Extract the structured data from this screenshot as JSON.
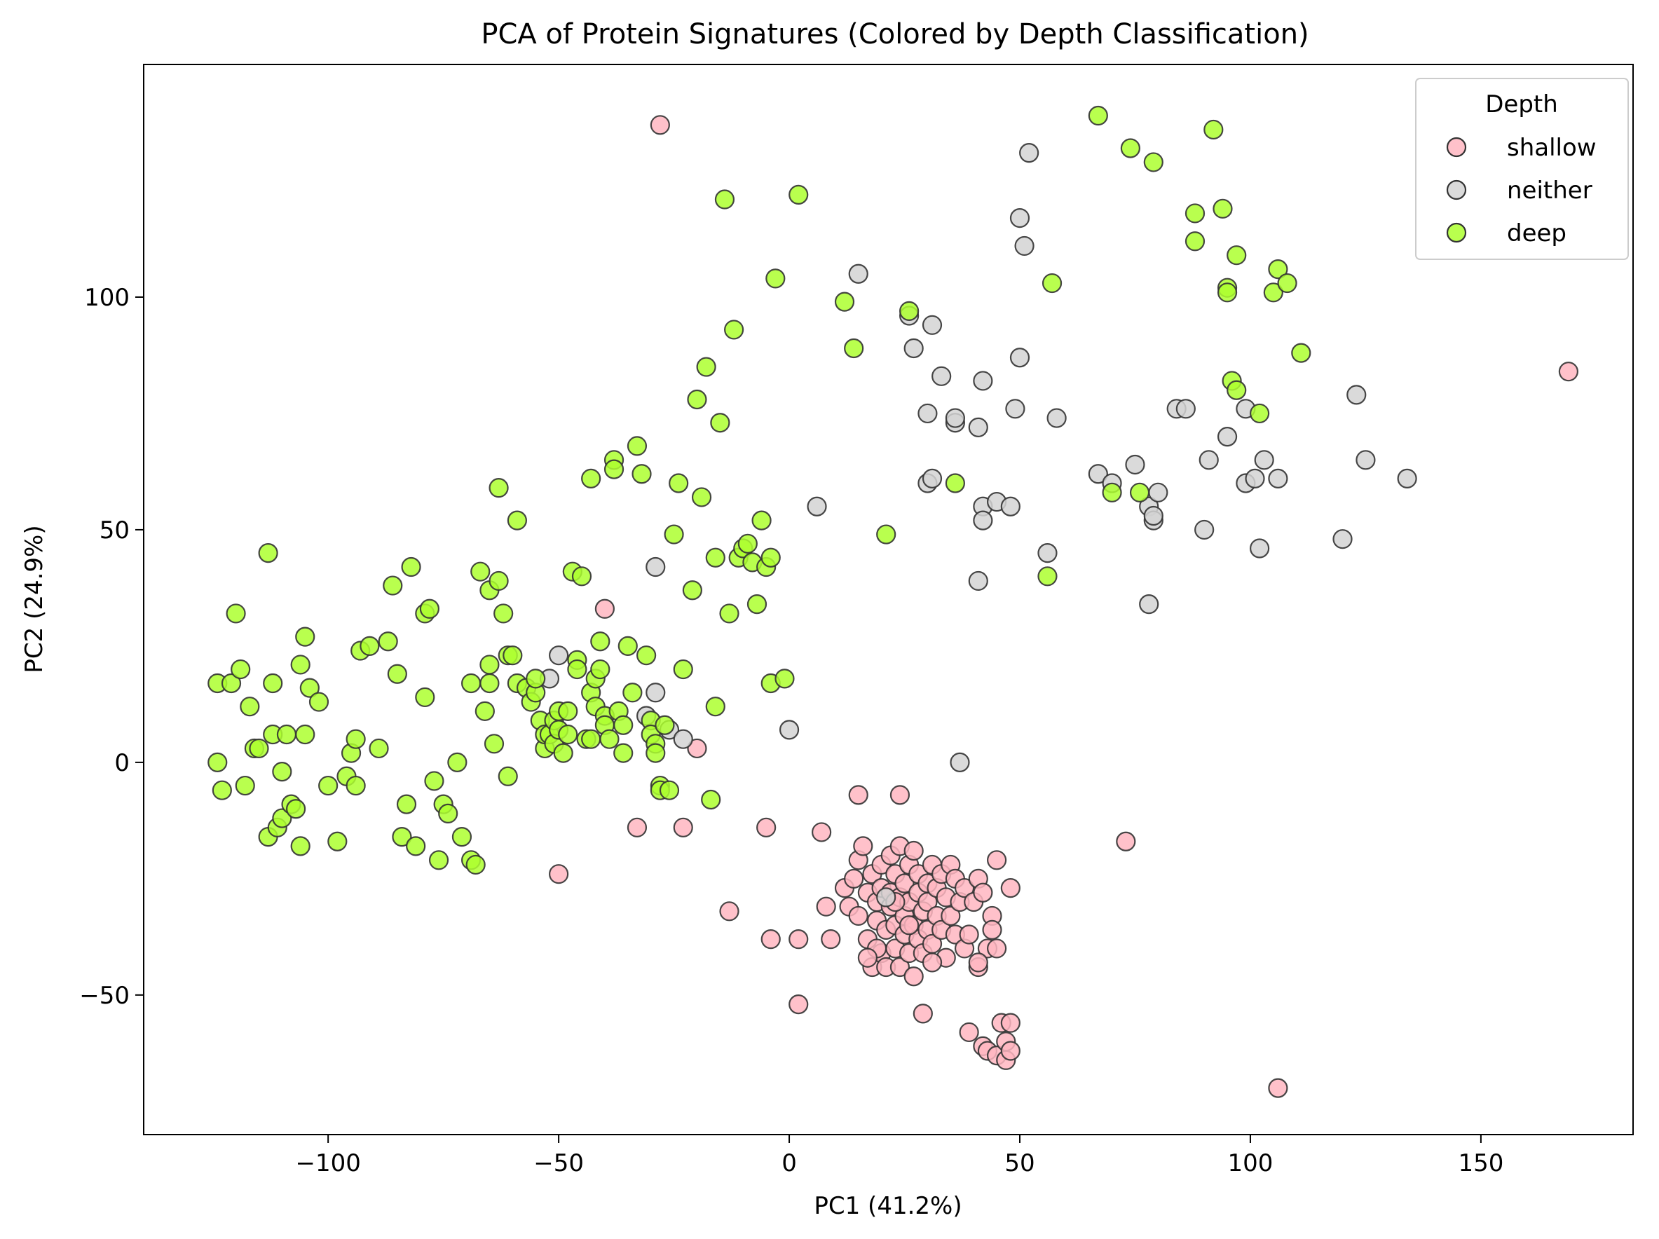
{
  "chart_data": {
    "type": "scatter",
    "title": "PCA of Protein Signatures (Colored by Depth Classification)",
    "xlabel": "PC1 (41.2%)",
    "ylabel": "PC2 (24.9%)",
    "xlim": [
      -140,
      183
    ],
    "ylim": [
      -80,
      150
    ],
    "xticks": [
      -100,
      -50,
      0,
      50,
      100,
      150
    ],
    "yticks": [
      -50,
      0,
      50,
      100
    ],
    "xtick_labels": [
      "−100",
      "−50",
      "0",
      "50",
      "100",
      "150"
    ],
    "ytick_labels": [
      "−50",
      "0",
      "50",
      "100"
    ],
    "grid": false,
    "legend": {
      "title": "Depth",
      "placement": "top-right"
    },
    "series": [
      {
        "name": "shallow",
        "color": "#ffb6c1",
        "points": [
          [
            -28,
            137
          ],
          [
            169,
            84
          ],
          [
            -40,
            33
          ],
          [
            -20,
            3
          ],
          [
            -50,
            -24
          ],
          [
            -33,
            -14
          ],
          [
            -23,
            -14
          ],
          [
            -13,
            -32
          ],
          [
            -5,
            -14
          ],
          [
            -4,
            -38
          ],
          [
            2,
            -38
          ],
          [
            2,
            -52
          ],
          [
            7,
            -15
          ],
          [
            8,
            -31
          ],
          [
            9,
            -38
          ],
          [
            15,
            -7
          ],
          [
            24,
            -7
          ],
          [
            73,
            -17
          ],
          [
            106,
            -70
          ],
          [
            12,
            -27
          ],
          [
            13,
            -31
          ],
          [
            14,
            -25
          ],
          [
            15,
            -33
          ],
          [
            15,
            -21
          ],
          [
            16,
            -18
          ],
          [
            17,
            -28
          ],
          [
            17,
            -38
          ],
          [
            18,
            -24
          ],
          [
            18,
            -44
          ],
          [
            19,
            -34
          ],
          [
            19,
            -30
          ],
          [
            20,
            -22
          ],
          [
            20,
            -41
          ],
          [
            20,
            -27
          ],
          [
            21,
            -36
          ],
          [
            21,
            -44
          ],
          [
            22,
            -20
          ],
          [
            22,
            -31
          ],
          [
            22,
            -28
          ],
          [
            23,
            -40
          ],
          [
            23,
            -24
          ],
          [
            23,
            -35
          ],
          [
            24,
            -18
          ],
          [
            24,
            -29
          ],
          [
            24,
            -44
          ],
          [
            25,
            -33
          ],
          [
            25,
            -26
          ],
          [
            25,
            -37
          ],
          [
            26,
            -22
          ],
          [
            26,
            -41
          ],
          [
            26,
            -30
          ],
          [
            27,
            -35
          ],
          [
            27,
            -19
          ],
          [
            27,
            -46
          ],
          [
            28,
            -28
          ],
          [
            28,
            -38
          ],
          [
            28,
            -24
          ],
          [
            29,
            -32
          ],
          [
            29,
            -41
          ],
          [
            29,
            -54
          ],
          [
            30,
            -26
          ],
          [
            30,
            -36
          ],
          [
            30,
            -30
          ],
          [
            31,
            -22
          ],
          [
            31,
            -39
          ],
          [
            32,
            -33
          ],
          [
            32,
            -27
          ],
          [
            33,
            -24
          ],
          [
            33,
            -36
          ],
          [
            34,
            -42
          ],
          [
            34,
            -29
          ],
          [
            35,
            -22
          ],
          [
            35,
            -33
          ],
          [
            36,
            -25
          ],
          [
            36,
            -37
          ],
          [
            37,
            -30
          ],
          [
            38,
            -27
          ],
          [
            38,
            -40
          ],
          [
            39,
            -37
          ],
          [
            39,
            -58
          ],
          [
            40,
            -30
          ],
          [
            41,
            -25
          ],
          [
            41,
            -44
          ],
          [
            42,
            -28
          ],
          [
            42,
            -61
          ],
          [
            43,
            -40
          ],
          [
            43,
            -62
          ],
          [
            44,
            -33
          ],
          [
            44,
            -36
          ],
          [
            45,
            -21
          ],
          [
            45,
            -63
          ],
          [
            46,
            -56
          ],
          [
            47,
            -64
          ],
          [
            47,
            -60
          ],
          [
            48,
            -27
          ],
          [
            48,
            -62
          ],
          [
            48,
            -56
          ],
          [
            45,
            -40
          ],
          [
            41,
            -43
          ],
          [
            19,
            -40
          ],
          [
            17,
            -42
          ],
          [
            23,
            -30
          ],
          [
            26,
            -35
          ],
          [
            31,
            -43
          ]
        ]
      },
      {
        "name": "neither",
        "color": "#d3d3d3",
        "points": [
          [
            -50,
            23
          ],
          [
            -52,
            18
          ],
          [
            -31,
            10
          ],
          [
            -29,
            15
          ],
          [
            -26,
            7
          ],
          [
            -23,
            5
          ],
          [
            -29,
            42
          ],
          [
            0,
            7
          ],
          [
            6,
            55
          ],
          [
            15,
            105
          ],
          [
            21,
            -29
          ],
          [
            26,
            96
          ],
          [
            27,
            89
          ],
          [
            30,
            60
          ],
          [
            30,
            75
          ],
          [
            31,
            61
          ],
          [
            31,
            94
          ],
          [
            33,
            83
          ],
          [
            36,
            73
          ],
          [
            36,
            74
          ],
          [
            37,
            0
          ],
          [
            41,
            39
          ],
          [
            41,
            72
          ],
          [
            42,
            55
          ],
          [
            42,
            52
          ],
          [
            42,
            82
          ],
          [
            45,
            56
          ],
          [
            48,
            55
          ],
          [
            49,
            76
          ],
          [
            50,
            87
          ],
          [
            50,
            117
          ],
          [
            51,
            111
          ],
          [
            52,
            131
          ],
          [
            56,
            45
          ],
          [
            58,
            74
          ],
          [
            67,
            62
          ],
          [
            70,
            60
          ],
          [
            75,
            64
          ],
          [
            78,
            34
          ],
          [
            78,
            55
          ],
          [
            79,
            52
          ],
          [
            79,
            53
          ],
          [
            80,
            58
          ],
          [
            84,
            76
          ],
          [
            86,
            76
          ],
          [
            90,
            50
          ],
          [
            91,
            65
          ],
          [
            95,
            70
          ],
          [
            99,
            60
          ],
          [
            99,
            76
          ],
          [
            101,
            61
          ],
          [
            102,
            46
          ],
          [
            103,
            65
          ],
          [
            106,
            61
          ],
          [
            120,
            48
          ],
          [
            123,
            79
          ],
          [
            125,
            65
          ],
          [
            134,
            61
          ]
        ]
      },
      {
        "name": "deep",
        "color": "#adff2f",
        "points": [
          [
            -124,
            17
          ],
          [
            -124,
            0
          ],
          [
            -123,
            -6
          ],
          [
            -121,
            17
          ],
          [
            -120,
            32
          ],
          [
            -119,
            20
          ],
          [
            -118,
            -5
          ],
          [
            -117,
            12
          ],
          [
            -116,
            3
          ],
          [
            -115,
            3
          ],
          [
            -113,
            -16
          ],
          [
            -113,
            45
          ],
          [
            -112,
            17
          ],
          [
            -112,
            6
          ],
          [
            -111,
            -14
          ],
          [
            -110,
            -12
          ],
          [
            -110,
            -2
          ],
          [
            -109,
            6
          ],
          [
            -108,
            -9
          ],
          [
            -107,
            -10
          ],
          [
            -106,
            21
          ],
          [
            -106,
            -18
          ],
          [
            -105,
            27
          ],
          [
            -105,
            6
          ],
          [
            -104,
            16
          ],
          [
            -102,
            13
          ],
          [
            -100,
            -5
          ],
          [
            -98,
            -17
          ],
          [
            -96,
            -3
          ],
          [
            -95,
            2
          ],
          [
            -94,
            5
          ],
          [
            -94,
            -5
          ],
          [
            -93,
            24
          ],
          [
            -91,
            25
          ],
          [
            -89,
            3
          ],
          [
            -87,
            26
          ],
          [
            -86,
            38
          ],
          [
            -85,
            19
          ],
          [
            -84,
            -16
          ],
          [
            -83,
            -9
          ],
          [
            -82,
            42
          ],
          [
            -81,
            -18
          ],
          [
            -79,
            14
          ],
          [
            -79,
            32
          ],
          [
            -78,
            33
          ],
          [
            -77,
            -4
          ],
          [
            -76,
            -21
          ],
          [
            -75,
            -9
          ],
          [
            -74,
            -11
          ],
          [
            -72,
            0
          ],
          [
            -71,
            -16
          ],
          [
            -69,
            17
          ],
          [
            -69,
            -21
          ],
          [
            -68,
            -22
          ],
          [
            -67,
            41
          ],
          [
            -66,
            11
          ],
          [
            -65,
            21
          ],
          [
            -65,
            17
          ],
          [
            -65,
            37
          ],
          [
            -64,
            4
          ],
          [
            -63,
            59
          ],
          [
            -63,
            39
          ],
          [
            -62,
            32
          ],
          [
            -61,
            -3
          ],
          [
            -61,
            23
          ],
          [
            -60,
            23
          ],
          [
            -59,
            52
          ],
          [
            -59,
            17
          ],
          [
            -57,
            16
          ],
          [
            -56,
            13
          ],
          [
            -55,
            15
          ],
          [
            -55,
            18
          ],
          [
            -54,
            9
          ],
          [
            -53,
            3
          ],
          [
            -53,
            6
          ],
          [
            -52,
            6
          ],
          [
            -51,
            9
          ],
          [
            -51,
            4
          ],
          [
            -50,
            11
          ],
          [
            -50,
            7
          ],
          [
            -49,
            2
          ],
          [
            -48,
            11
          ],
          [
            -48,
            6
          ],
          [
            -47,
            41
          ],
          [
            -46,
            22
          ],
          [
            -46,
            20
          ],
          [
            -45,
            40
          ],
          [
            -44,
            5
          ],
          [
            -43,
            15
          ],
          [
            -43,
            61
          ],
          [
            -43,
            5
          ],
          [
            -42,
            12
          ],
          [
            -42,
            18
          ],
          [
            -41,
            26
          ],
          [
            -41,
            20
          ],
          [
            -40,
            10
          ],
          [
            -40,
            8
          ],
          [
            -39,
            5
          ],
          [
            -38,
            65
          ],
          [
            -38,
            63
          ],
          [
            -37,
            11
          ],
          [
            -36,
            8
          ],
          [
            -36,
            2
          ],
          [
            -35,
            25
          ],
          [
            -34,
            15
          ],
          [
            -33,
            68
          ],
          [
            -32,
            62
          ],
          [
            -31,
            23
          ],
          [
            -30,
            9
          ],
          [
            -30,
            6
          ],
          [
            -29,
            4
          ],
          [
            -29,
            2
          ],
          [
            -28,
            -5
          ],
          [
            -28,
            -6
          ],
          [
            -27,
            8
          ],
          [
            -26,
            -6
          ],
          [
            -25,
            49
          ],
          [
            -24,
            60
          ],
          [
            -23,
            20
          ],
          [
            -21,
            37
          ],
          [
            -20,
            78
          ],
          [
            -19,
            57
          ],
          [
            -18,
            85
          ],
          [
            -17,
            -8
          ],
          [
            -16,
            12
          ],
          [
            -16,
            44
          ],
          [
            -15,
            73
          ],
          [
            -14,
            121
          ],
          [
            -13,
            32
          ],
          [
            -12,
            93
          ],
          [
            -11,
            44
          ],
          [
            -10,
            46
          ],
          [
            -9,
            47
          ],
          [
            -8,
            43
          ],
          [
            -7,
            34
          ],
          [
            -6,
            52
          ],
          [
            -5,
            42
          ],
          [
            -4,
            44
          ],
          [
            -4,
            17
          ],
          [
            -3,
            104
          ],
          [
            -1,
            18
          ],
          [
            2,
            122
          ],
          [
            12,
            99
          ],
          [
            14,
            89
          ],
          [
            21,
            49
          ],
          [
            26,
            97
          ],
          [
            36,
            60
          ],
          [
            56,
            40
          ],
          [
            57,
            103
          ],
          [
            67,
            139
          ],
          [
            70,
            58
          ],
          [
            74,
            132
          ],
          [
            76,
            58
          ],
          [
            79,
            129
          ],
          [
            88,
            118
          ],
          [
            88,
            112
          ],
          [
            92,
            136
          ],
          [
            94,
            119
          ],
          [
            95,
            102
          ],
          [
            95,
            101
          ],
          [
            96,
            82
          ],
          [
            97,
            80
          ],
          [
            97,
            109
          ],
          [
            102,
            75
          ],
          [
            105,
            101
          ],
          [
            106,
            106
          ],
          [
            108,
            103
          ],
          [
            111,
            88
          ]
        ]
      }
    ]
  }
}
